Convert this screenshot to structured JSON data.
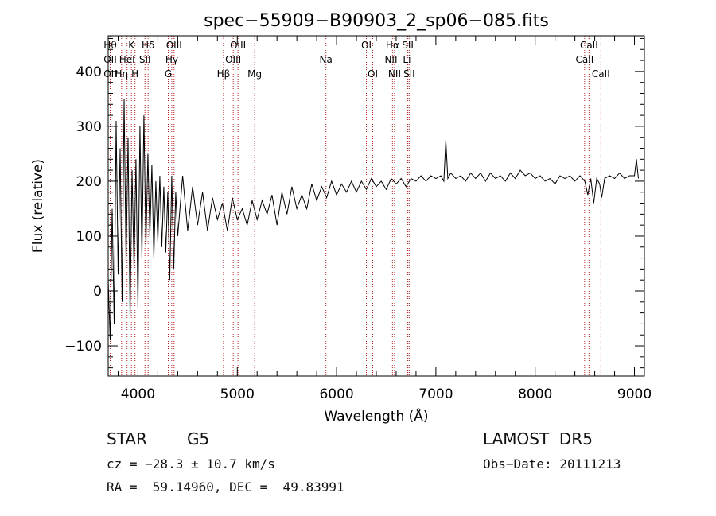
{
  "chart_data": {
    "type": "line",
    "title": "spec−55909−B90903_2_sp06−085.fits",
    "xlabel": "Wavelength (Å)",
    "ylabel": "Flux (relative)",
    "xlim": [
      3700,
      9100
    ],
    "ylim": [
      -155,
      465
    ],
    "x_ticks": [
      4000,
      5000,
      6000,
      7000,
      8000,
      9000
    ],
    "x_tick_labels": [
      "4000",
      "5000",
      "6000",
      "7000",
      "8000",
      "9000"
    ],
    "y_ticks": [
      -100,
      0,
      100,
      200,
      300,
      400
    ],
    "y_tick_labels": [
      "−100",
      "0",
      "100",
      "200",
      "300",
      "400"
    ],
    "grid": false,
    "line_color": "#000000",
    "marker_color": "#b22222",
    "series": [
      {
        "points": [
          [
            3700,
            20
          ],
          [
            3720,
            -90
          ],
          [
            3740,
            150
          ],
          [
            3760,
            -60
          ],
          [
            3780,
            310
          ],
          [
            3800,
            30
          ],
          [
            3820,
            260
          ],
          [
            3840,
            -20
          ],
          [
            3860,
            350
          ],
          [
            3880,
            50
          ],
          [
            3900,
            280
          ],
          [
            3920,
            -50
          ],
          [
            3940,
            220
          ],
          [
            3960,
            40
          ],
          [
            3980,
            240
          ],
          [
            4000,
            -30
          ],
          [
            4020,
            300
          ],
          [
            4040,
            60
          ],
          [
            4060,
            320
          ],
          [
            4080,
            80
          ],
          [
            4100,
            250
          ],
          [
            4120,
            100
          ],
          [
            4140,
            230
          ],
          [
            4160,
            60
          ],
          [
            4180,
            200
          ],
          [
            4200,
            90
          ],
          [
            4220,
            210
          ],
          [
            4240,
            80
          ],
          [
            4260,
            190
          ],
          [
            4280,
            70
          ],
          [
            4300,
            180
          ],
          [
            4320,
            20
          ],
          [
            4340,
            210
          ],
          [
            4360,
            40
          ],
          [
            4380,
            180
          ],
          [
            4400,
            100
          ],
          [
            4450,
            210
          ],
          [
            4500,
            110
          ],
          [
            4550,
            190
          ],
          [
            4600,
            120
          ],
          [
            4650,
            180
          ],
          [
            4700,
            110
          ],
          [
            4750,
            170
          ],
          [
            4800,
            130
          ],
          [
            4850,
            160
          ],
          [
            4900,
            110
          ],
          [
            4950,
            170
          ],
          [
            5000,
            130
          ],
          [
            5050,
            150
          ],
          [
            5100,
            120
          ],
          [
            5150,
            165
          ],
          [
            5200,
            130
          ],
          [
            5250,
            165
          ],
          [
            5300,
            140
          ],
          [
            5350,
            175
          ],
          [
            5400,
            120
          ],
          [
            5450,
            180
          ],
          [
            5500,
            140
          ],
          [
            5550,
            190
          ],
          [
            5600,
            150
          ],
          [
            5650,
            175
          ],
          [
            5700,
            150
          ],
          [
            5750,
            195
          ],
          [
            5800,
            165
          ],
          [
            5850,
            190
          ],
          [
            5900,
            170
          ],
          [
            5950,
            200
          ],
          [
            6000,
            175
          ],
          [
            6050,
            195
          ],
          [
            6100,
            180
          ],
          [
            6150,
            200
          ],
          [
            6200,
            180
          ],
          [
            6250,
            200
          ],
          [
            6300,
            185
          ],
          [
            6350,
            205
          ],
          [
            6400,
            190
          ],
          [
            6450,
            200
          ],
          [
            6500,
            185
          ],
          [
            6550,
            205
          ],
          [
            6600,
            195
          ],
          [
            6650,
            205
          ],
          [
            6700,
            190
          ],
          [
            6750,
            205
          ],
          [
            6800,
            200
          ],
          [
            6850,
            210
          ],
          [
            6900,
            200
          ],
          [
            6950,
            210
          ],
          [
            7000,
            205
          ],
          [
            7050,
            210
          ],
          [
            7080,
            200
          ],
          [
            7100,
            275
          ],
          [
            7120,
            205
          ],
          [
            7150,
            215
          ],
          [
            7200,
            205
          ],
          [
            7250,
            210
          ],
          [
            7300,
            200
          ],
          [
            7350,
            215
          ],
          [
            7400,
            205
          ],
          [
            7450,
            215
          ],
          [
            7500,
            200
          ],
          [
            7550,
            215
          ],
          [
            7600,
            205
          ],
          [
            7650,
            210
          ],
          [
            7700,
            200
          ],
          [
            7750,
            215
          ],
          [
            7800,
            205
          ],
          [
            7850,
            220
          ],
          [
            7900,
            210
          ],
          [
            7950,
            215
          ],
          [
            8000,
            205
          ],
          [
            8050,
            210
          ],
          [
            8100,
            200
          ],
          [
            8150,
            205
          ],
          [
            8200,
            195
          ],
          [
            8250,
            210
          ],
          [
            8300,
            205
          ],
          [
            8350,
            210
          ],
          [
            8400,
            200
          ],
          [
            8450,
            210
          ],
          [
            8500,
            200
          ],
          [
            8530,
            175
          ],
          [
            8560,
            205
          ],
          [
            8590,
            160
          ],
          [
            8620,
            205
          ],
          [
            8650,
            195
          ],
          [
            8670,
            170
          ],
          [
            8700,
            205
          ],
          [
            8750,
            210
          ],
          [
            8800,
            205
          ],
          [
            8850,
            215
          ],
          [
            8900,
            205
          ],
          [
            8950,
            210
          ],
          [
            9000,
            210
          ],
          [
            9020,
            240
          ],
          [
            9040,
            205
          ]
        ]
      }
    ],
    "line_markers": [
      {
        "x": 3720,
        "labels": [
          "Hθ",
          "OII",
          "OII"
        ],
        "rows": [
          0,
          1,
          2
        ]
      },
      {
        "x": 3835,
        "labels": [
          "Hη"
        ],
        "rows": [
          2
        ]
      },
      {
        "x": 3890,
        "labels": [
          "HeI"
        ],
        "rows": [
          1
        ]
      },
      {
        "x": 3934,
        "labels": [
          "K"
        ],
        "rows": [
          0
        ]
      },
      {
        "x": 3970,
        "labels": [
          "H"
        ],
        "rows": [
          2
        ]
      },
      {
        "x": 4070,
        "labels": [
          "SII"
        ],
        "rows": [
          1
        ]
      },
      {
        "x": 4102,
        "labels": [
          "Hδ"
        ],
        "rows": [
          0
        ]
      },
      {
        "x": 4305,
        "labels": [
          "G"
        ],
        "rows": [
          2
        ]
      },
      {
        "x": 4340,
        "labels": [
          "Hγ"
        ],
        "rows": [
          1
        ]
      },
      {
        "x": 4363,
        "labels": [
          "OIII"
        ],
        "rows": [
          0
        ]
      },
      {
        "x": 4861,
        "labels": [
          "Hβ"
        ],
        "rows": [
          2
        ]
      },
      {
        "x": 4959,
        "labels": [
          "OIII"
        ],
        "rows": [
          1
        ]
      },
      {
        "x": 5007,
        "labels": [
          "OIII"
        ],
        "rows": [
          0
        ]
      },
      {
        "x": 5175,
        "labels": [
          "Mg"
        ],
        "rows": [
          2
        ]
      },
      {
        "x": 5893,
        "labels": [
          "Na"
        ],
        "rows": [
          1
        ]
      },
      {
        "x": 6300,
        "labels": [
          "OI"
        ],
        "rows": [
          0
        ]
      },
      {
        "x": 6364,
        "labels": [
          "OI"
        ],
        "rows": [
          2
        ]
      },
      {
        "x": 6548,
        "labels": [
          "NII"
        ],
        "rows": [
          1
        ]
      },
      {
        "x": 6563,
        "labels": [
          "Hα"
        ],
        "rows": [
          0
        ]
      },
      {
        "x": 6584,
        "labels": [
          "NII"
        ],
        "rows": [
          2
        ]
      },
      {
        "x": 6708,
        "labels": [
          "Li"
        ],
        "rows": [
          1
        ]
      },
      {
        "x": 6717,
        "labels": [
          "SII"
        ],
        "rows": [
          0
        ]
      },
      {
        "x": 6731,
        "labels": [
          "SII"
        ],
        "rows": [
          2
        ]
      },
      {
        "x": 8498,
        "labels": [
          "CaII"
        ],
        "rows": [
          1
        ]
      },
      {
        "x": 8542,
        "labels": [
          "CaII"
        ],
        "rows": [
          0
        ]
      },
      {
        "x": 8662,
        "labels": [
          "CaII"
        ],
        "rows": [
          2
        ]
      }
    ]
  },
  "footer": {
    "object_class": "STAR",
    "subclass": "G5",
    "survey": "LAMOST  DR5",
    "redshift_text": "cz = −28.3 ± 10.7 km/s",
    "obs_date_text": "Obs−Date: 20111213",
    "coords_text": "RA =  59.14960, DEC =  49.83991"
  }
}
